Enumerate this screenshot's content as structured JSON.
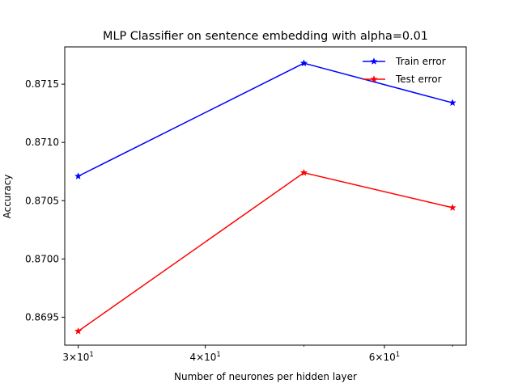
{
  "chart_data": {
    "type": "line",
    "title": "MLP Classifier on sentence embedding with alpha=0.01",
    "xlabel": "Number of neurones per hidden layer",
    "ylabel": "Accuracy",
    "x_scale": "log",
    "x": [
      30,
      50,
      70
    ],
    "xlim": [
      29.1,
      72.2
    ],
    "ylim": [
      0.86926,
      0.87182
    ],
    "x_ticks": [
      {
        "value": 30,
        "base": "3×10",
        "exp": "1"
      },
      {
        "value": 40,
        "base": "4×10",
        "exp": "1"
      },
      {
        "value": 60,
        "base": "6×10",
        "exp": "1"
      }
    ],
    "y_ticks": [
      {
        "value": 0.8695,
        "label": "0.8695"
      },
      {
        "value": 0.87,
        "label": "0.8700"
      },
      {
        "value": 0.8705,
        "label": "0.8705"
      },
      {
        "value": 0.871,
        "label": "0.8710"
      },
      {
        "value": 0.8715,
        "label": "0.8715"
      }
    ],
    "series": [
      {
        "name": "Train error",
        "color": "#0000ff",
        "marker": "star",
        "values": [
          0.87071,
          0.87168,
          0.87134
        ]
      },
      {
        "name": "Test error",
        "color": "#ff0000",
        "marker": "star",
        "values": [
          0.86938,
          0.87074,
          0.87044
        ]
      }
    ],
    "legend_position": "top-right",
    "grid": false
  }
}
